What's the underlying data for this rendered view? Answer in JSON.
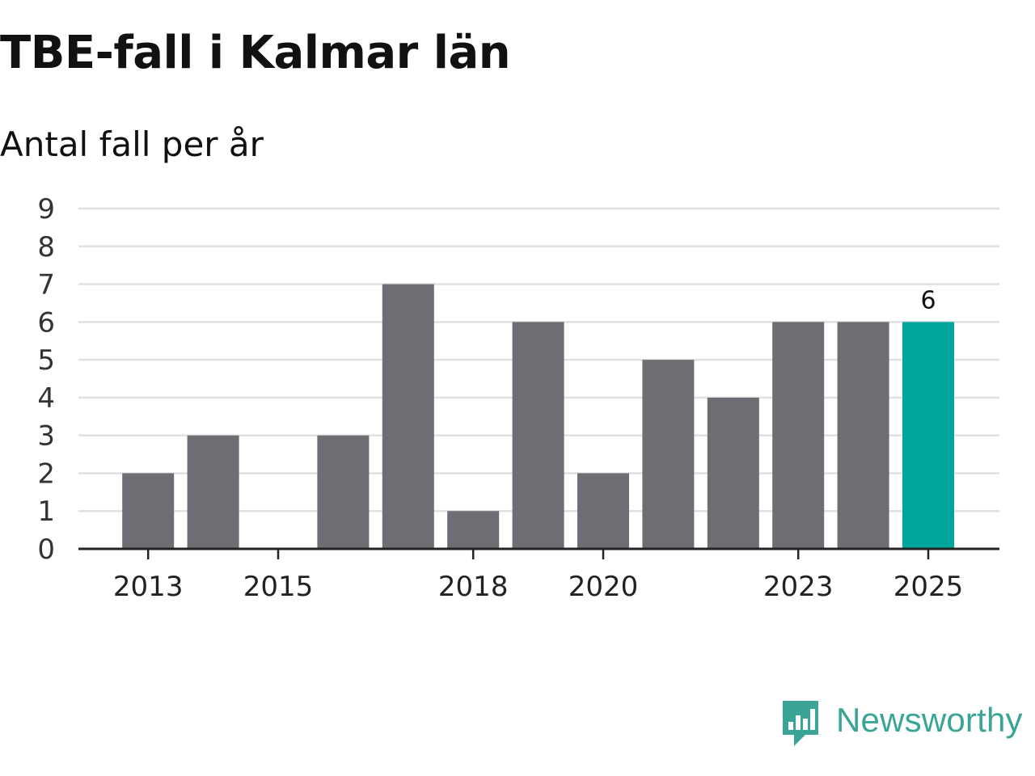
{
  "title": "TBE-fall i Kalmar län",
  "subtitle": "Antal fall per år",
  "brand": {
    "name": "Newsworthy",
    "icon": "newsworthy-logo-icon",
    "color": "#3aa597"
  },
  "chart_data": {
    "type": "bar",
    "title": "TBE-fall i Kalmar län",
    "subtitle": "Antal fall per år",
    "xlabel": "",
    "ylabel": "",
    "categories": [
      "2013",
      "2014",
      "2015",
      "2016",
      "2017",
      "2018",
      "2019",
      "2020",
      "2021",
      "2022",
      "2023",
      "2024",
      "2025"
    ],
    "values": [
      2,
      3,
      0,
      3,
      7,
      1,
      6,
      2,
      5,
      4,
      6,
      6,
      6
    ],
    "x_tick_labels": [
      "2013",
      "2015",
      "2018",
      "2020",
      "2023",
      "2025"
    ],
    "y_ticks": [
      0,
      1,
      2,
      3,
      4,
      5,
      6,
      7,
      8,
      9
    ],
    "ylim": [
      0,
      9
    ],
    "grid": true,
    "highlight_index": 12,
    "data_labels": [
      {
        "index": 12,
        "text": "6"
      }
    ],
    "colors": {
      "bar": "#6e6d73",
      "highlight": "#00a59b",
      "grid": "#e0e0e0",
      "axis": "#222222"
    }
  }
}
